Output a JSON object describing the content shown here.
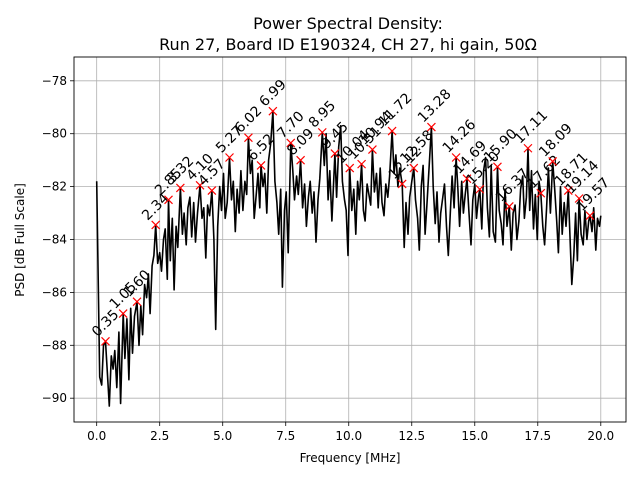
{
  "chart_data": {
    "type": "line",
    "title": "Power Spectral Density:",
    "subtitle": "Run 27, Board ID E190324, CH 27, hi gain, 50Ω",
    "xlabel": "Frequency [MHz]",
    "ylabel": "PSD [dB Full Scale]",
    "xlim": [
      -0.9,
      21.0
    ],
    "ylim": [
      -90.9,
      -77.1
    ],
    "xticks": [
      0.0,
      2.5,
      5.0,
      7.5,
      10.0,
      12.5,
      15.0,
      17.5,
      20.0
    ],
    "xtick_labels": [
      "0.0",
      "2.5",
      "5.0",
      "7.5",
      "10.0",
      "12.5",
      "15.0",
      "17.5",
      "20.0"
    ],
    "yticks": [
      -78,
      -80,
      -82,
      -84,
      -86,
      -88,
      -90
    ],
    "ytick_labels": [
      "−78",
      "−80",
      "−82",
      "−84",
      "−86",
      "−88",
      "−90"
    ],
    "grid": true,
    "series": [
      {
        "name": "PSD",
        "color": "#000000",
        "x": [
          0.0,
          0.12,
          0.2,
          0.27,
          0.35,
          0.42,
          0.5,
          0.58,
          0.65,
          0.72,
          0.8,
          0.88,
          0.95,
          1.05,
          1.12,
          1.2,
          1.28,
          1.35,
          1.42,
          1.5,
          1.6,
          1.68,
          1.75,
          1.82,
          1.9,
          1.98,
          2.05,
          2.12,
          2.2,
          2.27,
          2.34,
          2.42,
          2.5,
          2.57,
          2.65,
          2.72,
          2.8,
          2.85,
          2.92,
          3.0,
          3.07,
          3.15,
          3.22,
          3.32,
          3.4,
          3.47,
          3.55,
          3.62,
          3.7,
          3.77,
          3.85,
          3.92,
          4.0,
          4.1,
          4.18,
          4.25,
          4.33,
          4.4,
          4.48,
          4.57,
          4.65,
          4.72,
          4.8,
          4.88,
          4.95,
          5.03,
          5.1,
          5.18,
          5.27,
          5.35,
          5.42,
          5.5,
          5.57,
          5.65,
          5.72,
          5.8,
          5.88,
          5.95,
          6.02,
          6.1,
          6.17,
          6.25,
          6.32,
          6.4,
          6.47,
          6.52,
          6.6,
          6.67,
          6.75,
          6.82,
          6.9,
          6.99,
          7.07,
          7.15,
          7.22,
          7.3,
          7.37,
          7.45,
          7.52,
          7.6,
          7.7,
          7.78,
          7.85,
          7.93,
          8.0,
          8.09,
          8.17,
          8.25,
          8.32,
          8.4,
          8.47,
          8.55,
          8.62,
          8.7,
          8.78,
          8.85,
          8.95,
          9.03,
          9.1,
          9.18,
          9.25,
          9.33,
          9.45,
          9.52,
          9.6,
          9.68,
          9.75,
          9.83,
          9.9,
          9.97,
          10.04,
          10.12,
          10.2,
          10.28,
          10.35,
          10.42,
          10.51,
          10.58,
          10.65,
          10.73,
          10.8,
          10.87,
          10.94,
          11.02,
          11.1,
          11.17,
          11.25,
          11.32,
          11.4,
          11.47,
          11.55,
          11.62,
          11.72,
          11.8,
          11.87,
          11.95,
          12.02,
          12.12,
          12.2,
          12.27,
          12.35,
          12.42,
          12.5,
          12.58,
          12.65,
          12.73,
          12.8,
          12.88,
          12.95,
          13.03,
          13.1,
          13.18,
          13.28,
          13.35,
          13.43,
          13.5,
          13.58,
          13.65,
          13.73,
          13.8,
          13.88,
          13.95,
          14.03,
          14.1,
          14.18,
          14.26,
          14.33,
          14.4,
          14.48,
          14.55,
          14.62,
          14.69,
          14.77,
          14.85,
          14.92,
          15.0,
          15.07,
          15.15,
          15.2,
          15.28,
          15.35,
          15.43,
          15.5,
          15.58,
          15.65,
          15.73,
          15.82,
          15.9,
          15.97,
          16.05,
          16.12,
          16.2,
          16.28,
          16.37,
          16.45,
          16.52,
          16.6,
          16.67,
          16.75,
          16.82,
          16.9,
          16.97,
          17.05,
          17.11,
          17.18,
          17.25,
          17.33,
          17.4,
          17.48,
          17.55,
          17.62,
          17.7,
          17.77,
          17.85,
          17.92,
          18.0,
          18.09,
          18.17,
          18.25,
          18.32,
          18.4,
          18.47,
          18.55,
          18.62,
          18.71,
          18.78,
          18.85,
          18.93,
          19.0,
          19.07,
          19.14,
          19.22,
          19.3,
          19.37,
          19.45,
          19.52,
          19.57,
          19.65,
          19.72,
          19.8,
          19.87,
          19.95,
          20.0
        ],
        "y": [
          -81.8,
          -89.2,
          -89.5,
          -88.0,
          -87.85,
          -89.0,
          -90.3,
          -88.4,
          -88.9,
          -88.2,
          -89.6,
          -87.5,
          -90.2,
          -86.8,
          -88.5,
          -87.0,
          -89.3,
          -86.6,
          -88.3,
          -86.9,
          -86.35,
          -88.0,
          -86.5,
          -87.6,
          -85.7,
          -86.2,
          -85.3,
          -86.8,
          -85.0,
          -84.6,
          -83.45,
          -84.9,
          -84.5,
          -85.2,
          -84.0,
          -83.6,
          -85.5,
          -82.5,
          -84.8,
          -83.2,
          -85.9,
          -83.5,
          -84.3,
          -82.05,
          -83.8,
          -83.0,
          -84.2,
          -82.8,
          -82.4,
          -83.9,
          -82.6,
          -84.1,
          -83.0,
          -81.95,
          -83.2,
          -82.8,
          -84.7,
          -82.7,
          -83.1,
          -82.15,
          -84.0,
          -87.4,
          -83.5,
          -82.0,
          -82.9,
          -81.5,
          -83.2,
          -82.6,
          -80.9,
          -82.5,
          -81.8,
          -83.7,
          -82.1,
          -83.0,
          -81.4,
          -82.9,
          -81.8,
          -82.3,
          -80.15,
          -81.5,
          -81.0,
          -83.2,
          -82.4,
          -81.5,
          -82.8,
          -81.2,
          -82.0,
          -81.5,
          -83.0,
          -81.0,
          -80.4,
          -79.15,
          -81.8,
          -82.6,
          -83.8,
          -82.1,
          -85.8,
          -82.9,
          -82.2,
          -84.5,
          -80.35,
          -81.4,
          -82.5,
          -81.6,
          -82.3,
          -81.0,
          -82.8,
          -81.9,
          -83.5,
          -82.4,
          -81.8,
          -83.0,
          -82.2,
          -84.1,
          -82.5,
          -81.7,
          -79.95,
          -81.2,
          -80.0,
          -82.5,
          -81.4,
          -83.3,
          -80.75,
          -82.4,
          -80.5,
          -79.7,
          -81.8,
          -82.5,
          -82.9,
          -84.6,
          -81.3,
          -82.9,
          -82.1,
          -83.8,
          -81.8,
          -82.5,
          -81.15,
          -82.9,
          -83.3,
          -81.9,
          -82.3,
          -82.7,
          -80.6,
          -82.2,
          -81.5,
          -82.8,
          -81.3,
          -82.6,
          -83.1,
          -81.9,
          -82.4,
          -81.6,
          -79.9,
          -81.5,
          -80.8,
          -82.0,
          -81.3,
          -81.9,
          -84.3,
          -82.6,
          -83.8,
          -82.4,
          -81.8,
          -81.3,
          -82.5,
          -83.2,
          -84.4,
          -82.0,
          -81.2,
          -83.8,
          -82.7,
          -81.4,
          -79.75,
          -82.0,
          -83.4,
          -82.2,
          -84.1,
          -83.0,
          -82.4,
          -81.9,
          -83.5,
          -84.6,
          -83.0,
          -81.6,
          -82.8,
          -80.9,
          -82.1,
          -83.5,
          -81.8,
          -83.0,
          -82.3,
          -81.7,
          -83.0,
          -84.2,
          -82.5,
          -81.9,
          -83.2,
          -82.4,
          -82.1,
          -83.6,
          -81.4,
          -80.9,
          -82.8,
          -83.9,
          -81.2,
          -83.7,
          -84.1,
          -81.25,
          -82.9,
          -83.4,
          -84.2,
          -82.1,
          -83.5,
          -82.75,
          -84.4,
          -83.0,
          -82.7,
          -84.0,
          -83.3,
          -82.1,
          -81.6,
          -83.2,
          -82.4,
          -80.55,
          -82.9,
          -81.4,
          -83.6,
          -82.3,
          -84.0,
          -81.8,
          -82.25,
          -83.5,
          -84.2,
          -82.8,
          -81.3,
          -83.0,
          -81.05,
          -82.1,
          -83.3,
          -84.5,
          -82.0,
          -83.8,
          -82.6,
          -83.5,
          -82.15,
          -83.9,
          -85.7,
          -84.6,
          -83.0,
          -84.8,
          -82.45,
          -83.8,
          -84.2,
          -82.9,
          -84.0,
          -83.3,
          -83.1,
          -83.7,
          -82.8,
          -84.4,
          -83.2,
          -83.5,
          -83.1
        ]
      }
    ],
    "peaks": [
      {
        "label": "0.35",
        "x": 0.35,
        "y": -87.85
      },
      {
        "label": "1.05",
        "x": 1.05,
        "y": -86.8
      },
      {
        "label": "1.60",
        "x": 1.6,
        "y": -86.35
      },
      {
        "label": "2.34",
        "x": 2.34,
        "y": -83.45
      },
      {
        "label": "2.85",
        "x": 2.85,
        "y": -82.5
      },
      {
        "label": "3.32",
        "x": 3.32,
        "y": -82.05
      },
      {
        "label": "4.10",
        "x": 4.1,
        "y": -81.95
      },
      {
        "label": "4.57",
        "x": 4.57,
        "y": -82.15
      },
      {
        "label": "5.27",
        "x": 5.27,
        "y": -80.9
      },
      {
        "label": "6.02",
        "x": 6.02,
        "y": -80.15
      },
      {
        "label": "6.52",
        "x": 6.52,
        "y": -81.2
      },
      {
        "label": "6.99",
        "x": 6.99,
        "y": -79.15
      },
      {
        "label": "7.70",
        "x": 7.7,
        "y": -80.35
      },
      {
        "label": "8.09",
        "x": 8.09,
        "y": -81.0
      },
      {
        "label": "8.95",
        "x": 8.95,
        "y": -79.95
      },
      {
        "label": "9.45",
        "x": 9.45,
        "y": -80.75
      },
      {
        "label": "10.04",
        "x": 10.04,
        "y": -81.3
      },
      {
        "label": "10.51",
        "x": 10.51,
        "y": -81.15
      },
      {
        "label": "10.94",
        "x": 10.94,
        "y": -80.6
      },
      {
        "label": "11.72",
        "x": 11.72,
        "y": -79.9
      },
      {
        "label": "12.12",
        "x": 12.12,
        "y": -81.9
      },
      {
        "label": "12.58",
        "x": 12.58,
        "y": -81.3
      },
      {
        "label": "13.28",
        "x": 13.28,
        "y": -79.75
      },
      {
        "label": "14.26",
        "x": 14.26,
        "y": -80.9
      },
      {
        "label": "14.69",
        "x": 14.69,
        "y": -81.7
      },
      {
        "label": "15.20",
        "x": 15.2,
        "y": -82.1
      },
      {
        "label": "15.90",
        "x": 15.9,
        "y": -81.25
      },
      {
        "label": "16.37",
        "x": 16.37,
        "y": -82.75
      },
      {
        "label": "17.11",
        "x": 17.11,
        "y": -80.55
      },
      {
        "label": "17.62",
        "x": 17.62,
        "y": -82.25
      },
      {
        "label": "18.09",
        "x": 18.09,
        "y": -81.05
      },
      {
        "label": "18.71",
        "x": 18.71,
        "y": -82.15
      },
      {
        "label": "19.14",
        "x": 19.14,
        "y": -82.45
      },
      {
        "label": "19.57",
        "x": 19.57,
        "y": -83.1
      }
    ],
    "peak_marker": "x",
    "peak_color": "#ff0000",
    "annotation_rotation_deg": 45
  }
}
